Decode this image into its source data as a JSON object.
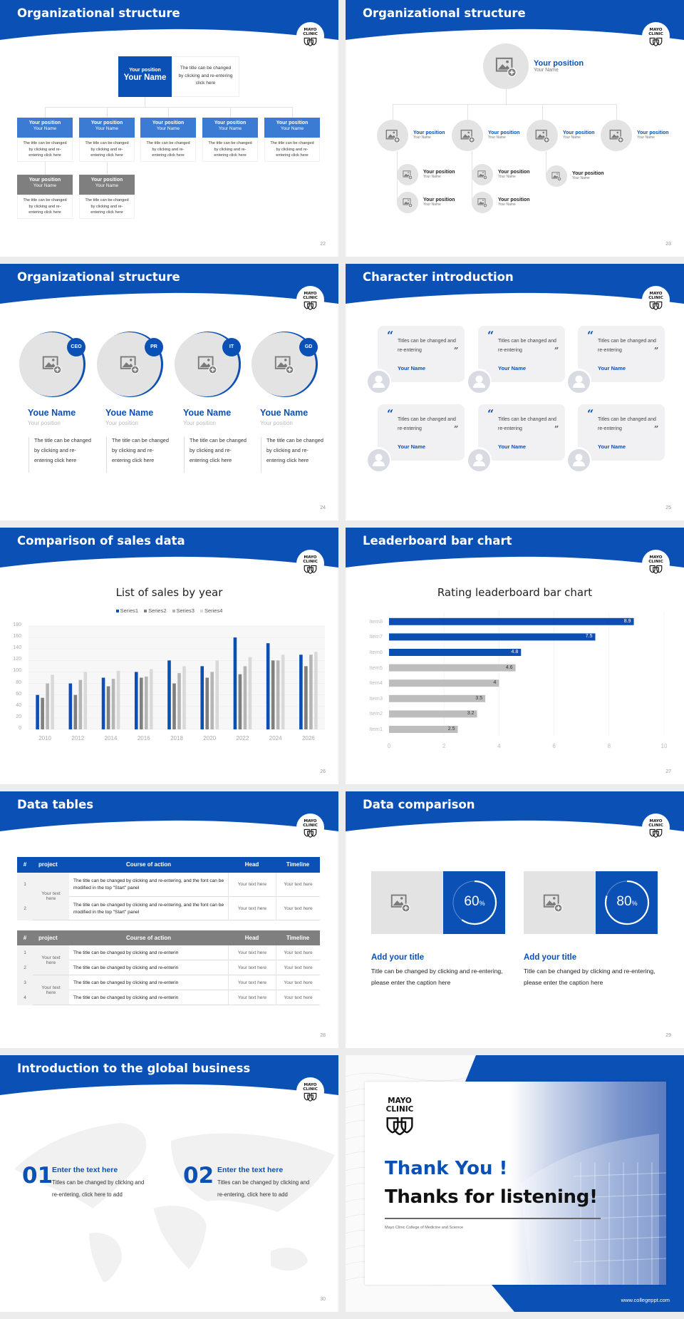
{
  "logo": {
    "text": "MAYO CLINIC"
  },
  "colors": {
    "brand_blue": "#0b50b5",
    "light_blue": "#3b7bd4",
    "gray": "#7f7f7f",
    "light_gray": "#e3e3e3"
  },
  "slides": {
    "s22": {
      "title": "Organizational structure",
      "page": "22",
      "top": {
        "position": "Your position",
        "name": "Your Name",
        "desc": "The title can be changed by clicking and re-entering click here"
      },
      "members": [
        {
          "position": "Your position",
          "name": "Your Name",
          "desc": "The title can be changed by clicking and re-entering click here"
        },
        {
          "position": "Your position",
          "name": "Your Name",
          "desc": "The title can be changed by clicking and re-entering click here"
        },
        {
          "position": "Your position",
          "name": "Your Name",
          "desc": "The title can be changed by clicking and re-entering click here"
        },
        {
          "position": "Your position",
          "name": "Your Name",
          "desc": "The title can be changed by clicking and re-entering click here"
        },
        {
          "position": "Your position",
          "name": "Your Name",
          "desc": "The title can be changed by clicking and re-entering click here"
        },
        {
          "position": "Your position",
          "name": "Your Name",
          "desc": "The title can be changed by clicking and re-entering click here"
        },
        {
          "position": "Your position",
          "name": "Your Name",
          "desc": "The title can be changed by clicking and re-entering click here"
        }
      ]
    },
    "s23": {
      "title": "Organizational structure",
      "page": "23",
      "top": {
        "position": "Your position",
        "name": "Your Name"
      },
      "level2": [
        {
          "position": "Your position",
          "name": "Your Name"
        },
        {
          "position": "Your position",
          "name": "Your Name"
        },
        {
          "position": "Your position",
          "name": "Your Name"
        },
        {
          "position": "Your position",
          "name": "Your Name"
        }
      ],
      "level3": [
        {
          "position": "Your position",
          "name": "Your Name"
        },
        {
          "position": "Your position",
          "name": "Your Name"
        },
        {
          "position": "Your position",
          "name": "Your Name"
        },
        {
          "position": "Your position",
          "name": "Your Name"
        },
        {
          "position": "Your position",
          "name": "Your Name"
        }
      ]
    },
    "s24": {
      "title": "Organizational structure",
      "page": "24",
      "people": [
        {
          "badge": "CEO",
          "name": "Youe Name",
          "position": "Your position",
          "desc": "The title can be changed by clicking and re-entering click here"
        },
        {
          "badge": "PR",
          "name": "Youe Name",
          "position": "Your position",
          "desc": "The title can be changed by clicking and re-entering click here"
        },
        {
          "badge": "IT",
          "name": "Youe Name",
          "position": "Your position",
          "desc": "The title can be changed by clicking and re-entering click here"
        },
        {
          "badge": "GD",
          "name": "Youe Name",
          "position": "Your position",
          "desc": "The title can be changed by clicking and re-entering click here"
        }
      ]
    },
    "s25": {
      "title": "Character introduction",
      "page": "25",
      "open_quote": "“",
      "close_quote": "”",
      "cards": [
        {
          "quote": "Titles can be changed and re-entering",
          "name": "Your Name"
        },
        {
          "quote": "Titles can be changed and re-entering",
          "name": "Your Name"
        },
        {
          "quote": "Titles can be changed and re-entering",
          "name": "Your Name"
        },
        {
          "quote": "Titles can be changed and re-entering",
          "name": "Your Name"
        },
        {
          "quote": "Titles can be changed and re-entering",
          "name": "Your Name"
        },
        {
          "quote": "Titles can be changed and re-entering",
          "name": "Your Name"
        }
      ]
    },
    "s26": {
      "title": "Comparison of sales data",
      "page": "26"
    },
    "s27": {
      "title": "Leaderboard bar chart",
      "page": "27"
    },
    "s28": {
      "title": "Data tables",
      "page": "28",
      "headers": [
        "#",
        "project",
        "Course of action",
        "Head",
        "Timeline"
      ],
      "table1": {
        "groups": [
          "Your text here"
        ],
        "rows": [
          {
            "num": "1",
            "course": "The title can be changed by clicking and re-entering, and the font can be modified in the top \"Start\" panel",
            "head": "Your text here",
            "timeline": "Your text here"
          },
          {
            "num": "2",
            "course": "The title can be changed by clicking and re-entering, and the font can be modified in the top \"Start\" panel",
            "head": "Your text here",
            "timeline": "Your text here"
          }
        ]
      },
      "table2": {
        "groups": [
          "Your text here",
          "Your text here"
        ],
        "rows": [
          {
            "num": "1",
            "course": "The title can be changed by clicking and re-enterin",
            "head": "Your text here",
            "timeline": "Your text here"
          },
          {
            "num": "2",
            "course": "The title can be changed by clicking and re-enterin",
            "head": "Your text here",
            "timeline": "Your text here"
          },
          {
            "num": "3",
            "course": "The title can be changed by clicking and re-enterin",
            "head": "Your text here",
            "timeline": "Your text here"
          },
          {
            "num": "4",
            "course": "The title can be changed by clicking and re-enterin",
            "head": "Your text here",
            "timeline": "Your text here"
          }
        ]
      }
    },
    "s29": {
      "title": "Data comparison",
      "page": "29",
      "items": [
        {
          "percent": 60,
          "value": "60",
          "unit": "%",
          "title": "Add your title",
          "desc": "Title can be changed by clicking and re-entering, please enter the caption here"
        },
        {
          "percent": 80,
          "value": "80",
          "unit": "%",
          "title": "Add your title",
          "desc": "Title can be changed by clicking and re-entering, please enter the caption here"
        }
      ]
    },
    "s30": {
      "title": "Introduction to the global business",
      "page": "30",
      "items": [
        {
          "num": "01",
          "title": "Enter the text here",
          "desc": "Titles can be changed by clicking and re-entering, click here to add"
        },
        {
          "num": "02",
          "title": "Enter the text here",
          "desc": "Titles can be changed by clicking and re-entering, click here to add"
        }
      ]
    },
    "s31": {
      "thank_you": "Thank You !",
      "listening": "Thanks for listening!",
      "subtitle": "Mayo Clinic College of Medicine and Science",
      "url": "www.collegeppt.com"
    }
  },
  "chart_data": [
    {
      "type": "bar",
      "title": "List of sales by year",
      "categories": [
        "2010",
        "2012",
        "2014",
        "2016",
        "2018",
        "2020",
        "2022",
        "2024",
        "2026"
      ],
      "series": [
        {
          "name": "Series1",
          "color": "#0b4fb3",
          "values": [
            60,
            80,
            90,
            100,
            120,
            110,
            160,
            150,
            130
          ]
        },
        {
          "name": "Series2",
          "color": "#7f7f7f",
          "values": [
            55,
            60,
            75,
            90,
            80,
            90,
            96,
            120,
            110
          ]
        },
        {
          "name": "Series3",
          "color": "#b5b5b5",
          "values": [
            80,
            86,
            88,
            92,
            98,
            100,
            110,
            120,
            130
          ]
        },
        {
          "name": "Series4",
          "color": "#d9d9d9",
          "values": [
            95,
            100,
            102,
            105,
            110,
            120,
            126,
            130,
            135
          ]
        }
      ],
      "yticks": [
        "0",
        "20",
        "40",
        "60",
        "80",
        "100",
        "120",
        "140",
        "160",
        "180"
      ],
      "ylim": [
        0,
        180
      ],
      "legend": "top",
      "grid": true
    },
    {
      "type": "bar",
      "orientation": "horizontal",
      "title": "Rating leaderboard bar chart",
      "categories": [
        "Item1",
        "Item2",
        "Item3",
        "Item4",
        "Item5",
        "Item6",
        "Item7",
        "Item8"
      ],
      "values": [
        2.5,
        3.2,
        3.5,
        4,
        4.6,
        4.8,
        7.5,
        8.9
      ],
      "labels": [
        "2.5",
        "3.2",
        "3.5",
        "4",
        "4.6",
        "4.8",
        "7.5",
        "8.9"
      ],
      "highlight_color": "#0b4fb3",
      "base_color": "#bdbdbd",
      "highlight_top_n": 3,
      "xticks": [
        "0",
        "2",
        "4",
        "6",
        "8",
        "10"
      ],
      "xlim": [
        0,
        10
      ],
      "grid": true
    }
  ]
}
